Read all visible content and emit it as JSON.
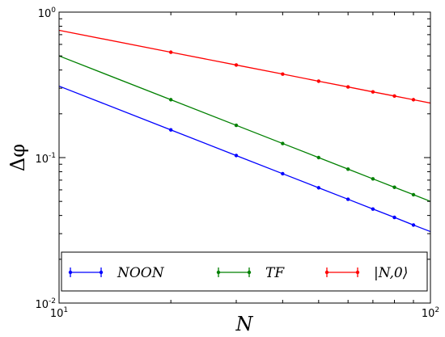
{
  "chart_data": {
    "type": "line",
    "xscale": "log",
    "yscale": "log",
    "xlim": [
      10,
      100
    ],
    "ylim": [
      0.01,
      1
    ],
    "xlabel": "N",
    "ylabel": "Δφ",
    "grid": false,
    "legend_position": "lower-center",
    "x_ticks": [
      {
        "value": 10,
        "mantissa": "10",
        "exp": "1"
      },
      {
        "value": 100,
        "mantissa": "10",
        "exp": "2"
      }
    ],
    "y_ticks": [
      {
        "value": 0.01,
        "mantissa": "10",
        "exp": "-2"
      },
      {
        "value": 0.1,
        "mantissa": "10",
        "exp": "-1"
      },
      {
        "value": 1,
        "mantissa": "10",
        "exp": "0"
      }
    ],
    "x_points": [
      20,
      30,
      40,
      50,
      60,
      70,
      80,
      90
    ],
    "series": [
      {
        "name": "NOON",
        "color": "#0000ff",
        "slope": -1,
        "start_y": 0.31,
        "end_y": 0.031,
        "values": [
          0.155,
          0.1033,
          0.0775,
          0.062,
          0.0517,
          0.0443,
          0.0388,
          0.0344
        ]
      },
      {
        "name": "TF",
        "color": "#008000",
        "slope": -1,
        "start_y": 0.5,
        "end_y": 0.05,
        "values": [
          0.25,
          0.1667,
          0.125,
          0.1,
          0.0833,
          0.0714,
          0.0625,
          0.0556
        ]
      },
      {
        "name": "|N,0⟩",
        "color": "#ff0000",
        "slope": -0.5,
        "start_y": 0.75,
        "end_y": 0.237,
        "values": [
          0.53,
          0.433,
          0.375,
          0.335,
          0.306,
          0.283,
          0.265,
          0.25
        ]
      }
    ]
  }
}
